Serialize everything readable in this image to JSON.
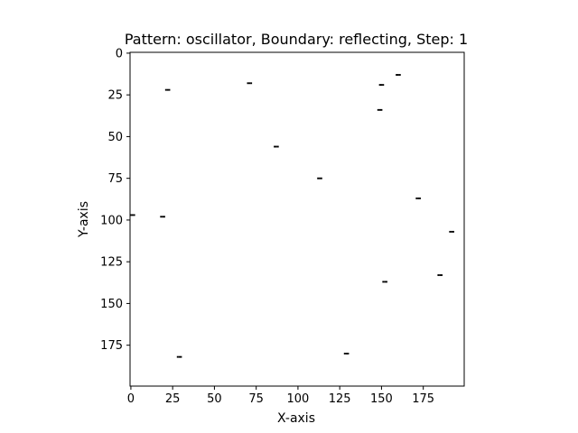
{
  "chart_data": {
    "type": "heatmap",
    "title": "Pattern: oscillator, Boundary: reflecting, Step: 1",
    "xlabel": "X-axis",
    "ylabel": "Y-axis",
    "xlim": [
      0,
      200
    ],
    "ylim": [
      200,
      0
    ],
    "y_inverted": true,
    "grid": false,
    "legend": "none",
    "xticks": [
      0,
      25,
      50,
      75,
      100,
      125,
      150,
      175
    ],
    "yticks": [
      0,
      25,
      50,
      75,
      100,
      125,
      150,
      175
    ],
    "colormap": {
      "alive": "#000000",
      "dead": "#ffffff"
    },
    "live_cells": [
      {
        "row": 13,
        "cols": [
          159,
          160,
          161
        ]
      },
      {
        "row": 18,
        "cols": [
          70,
          71,
          72
        ]
      },
      {
        "row": 19,
        "cols": [
          149,
          150,
          151
        ]
      },
      {
        "row": 22,
        "cols": [
          21,
          22,
          23
        ]
      },
      {
        "row": 34,
        "cols": [
          148,
          149,
          150
        ]
      },
      {
        "row": 56,
        "cols": [
          86,
          87,
          88
        ]
      },
      {
        "row": 75,
        "cols": [
          112,
          113,
          114
        ]
      },
      {
        "row": 87,
        "cols": [
          171,
          172,
          173
        ]
      },
      {
        "row": 97,
        "cols": [
          0,
          1,
          2
        ]
      },
      {
        "row": 98,
        "cols": [
          18,
          19,
          20
        ]
      },
      {
        "row": 107,
        "cols": [
          191,
          192,
          193
        ]
      },
      {
        "row": 133,
        "cols": [
          184,
          185,
          186
        ]
      },
      {
        "row": 137,
        "cols": [
          151,
          152,
          153
        ]
      },
      {
        "row": 180,
        "cols": [
          128,
          129,
          130
        ]
      },
      {
        "row": 182,
        "cols": [
          28,
          29,
          30
        ]
      }
    ]
  }
}
